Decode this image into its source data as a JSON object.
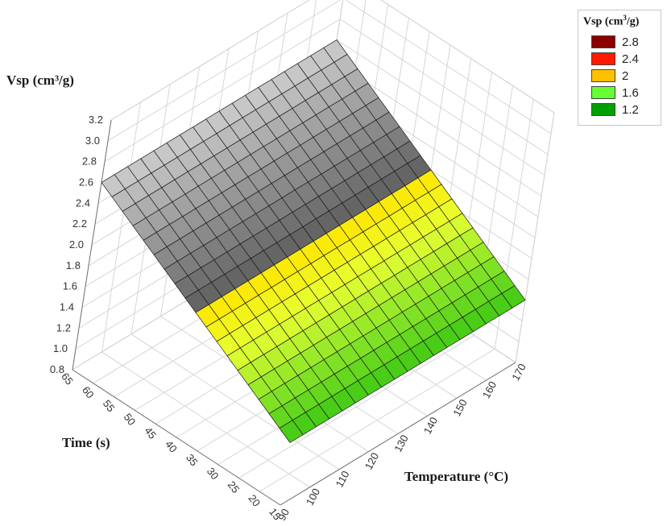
{
  "chart_data": {
    "type": "surface3d",
    "z_label": "Vsp (cm³/g)",
    "x_label": "Temperature (°C)",
    "y_label": "Time (s)",
    "x_ticks": [
      "90",
      "100",
      "110",
      "120",
      "130",
      "140",
      "150",
      "160",
      "170"
    ],
    "y_ticks": [
      "15",
      "20",
      "25",
      "30",
      "35",
      "40",
      "45",
      "50",
      "55",
      "60",
      "65"
    ],
    "z_ticks": [
      "0.8",
      "1.0",
      "1.2",
      "1.4",
      "1.6",
      "1.8",
      "2.0",
      "2.2",
      "2.4",
      "2.6",
      "2.8",
      "3.0",
      "3.2"
    ],
    "xlim": [
      90,
      170
    ],
    "ylim": [
      15,
      65
    ],
    "zlim": [
      0.8,
      3.2
    ],
    "grid": true,
    "legend_position": "top-right",
    "surface": {
      "corners": [
        {
          "temperature": 90,
          "time": 65,
          "vsp": 2.6
        },
        {
          "temperature": 90,
          "time": 15,
          "vsp": 1.4
        },
        {
          "temperature": 170,
          "time": 15,
          "vsp": 1.4
        },
        {
          "temperature": 170,
          "time": 65,
          "vsp": 2.6
        }
      ],
      "saddle_value": 1.8
    },
    "legend": {
      "title_main": "Vsp (cm",
      "title_sup": "3",
      "title_end": "/g)",
      "entries": [
        {
          "label": "2.8",
          "color": "#8b0000"
        },
        {
          "label": "2.4",
          "color": "#ff1a00"
        },
        {
          "label": "2",
          "color": "#ffc000"
        },
        {
          "label": "1.6",
          "color": "#66ff33"
        },
        {
          "label": "1.2",
          "color": "#00a000"
        }
      ]
    }
  }
}
